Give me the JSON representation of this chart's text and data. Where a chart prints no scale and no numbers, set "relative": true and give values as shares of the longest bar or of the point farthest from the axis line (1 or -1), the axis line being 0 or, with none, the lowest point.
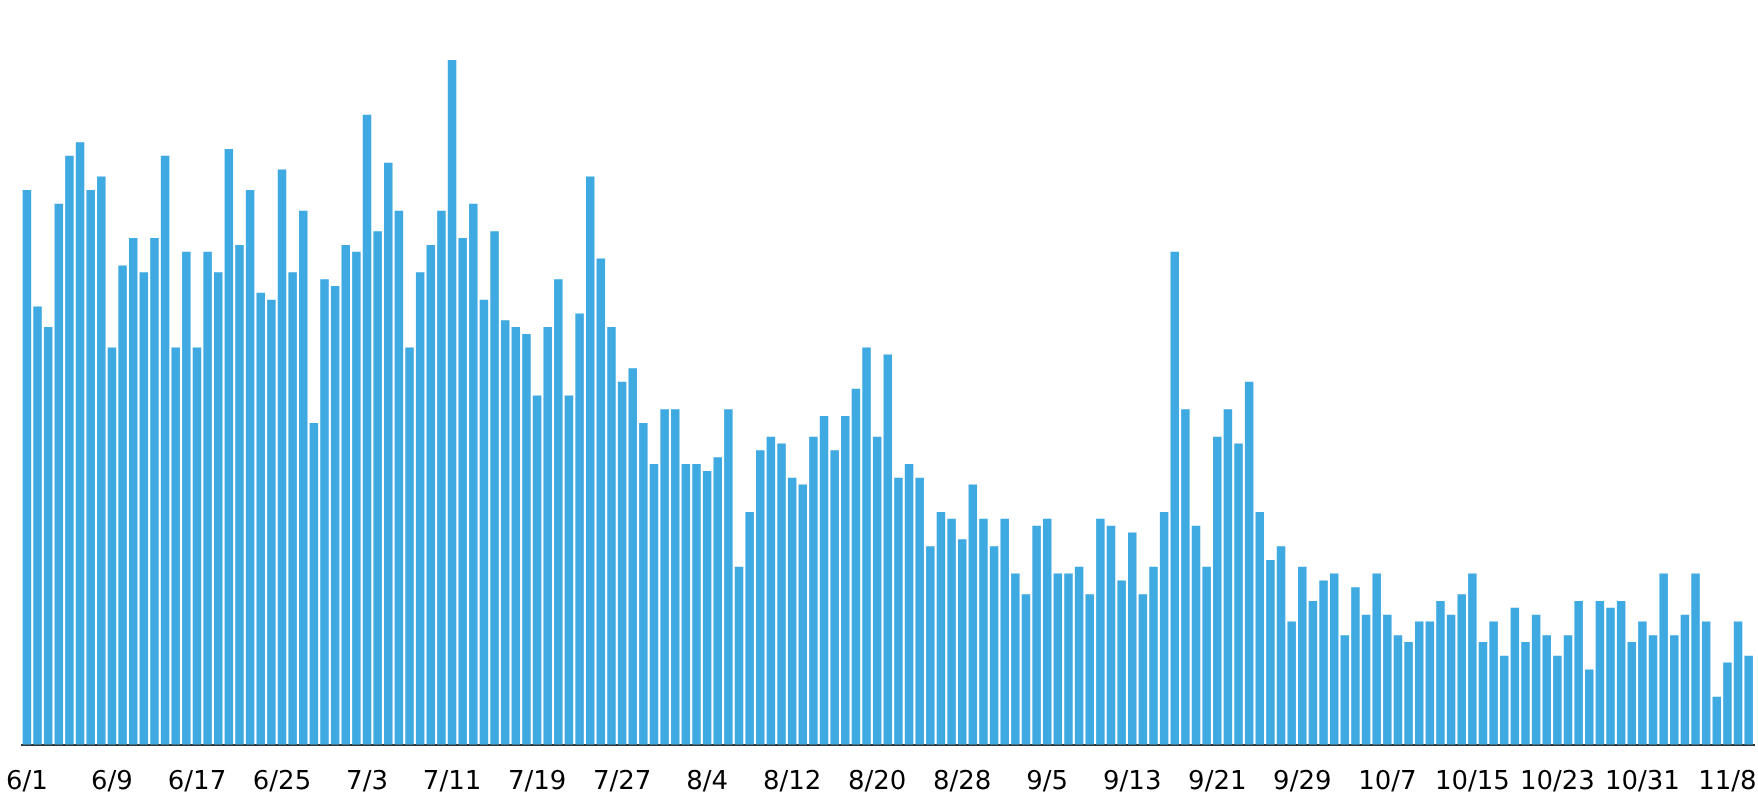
{
  "chart_data": {
    "type": "bar",
    "relative": true,
    "color": "#3fa9e1",
    "categories": [
      "6/1",
      null,
      null,
      null,
      null,
      null,
      null,
      null,
      "6/9",
      null,
      null,
      null,
      null,
      null,
      null,
      null,
      "6/17",
      null,
      null,
      null,
      null,
      null,
      null,
      null,
      "6/25",
      null,
      null,
      null,
      null,
      null,
      null,
      null,
      "7/3",
      null,
      null,
      null,
      null,
      null,
      null,
      null,
      "7/11",
      null,
      null,
      null,
      null,
      null,
      null,
      null,
      "7/19",
      null,
      null,
      null,
      null,
      null,
      null,
      null,
      "7/27",
      null,
      null,
      null,
      null,
      null,
      null,
      null,
      "8/4",
      null,
      null,
      null,
      null,
      null,
      null,
      null,
      "8/12",
      null,
      null,
      null,
      null,
      null,
      null,
      null,
      "8/20",
      null,
      null,
      null,
      null,
      null,
      null,
      null,
      "8/28",
      null,
      null,
      null,
      null,
      null,
      null,
      null,
      "9/5",
      null,
      null,
      null,
      null,
      null,
      null,
      null,
      "9/13",
      null,
      null,
      null,
      null,
      null,
      null,
      null,
      "9/21",
      null,
      null,
      null,
      null,
      null,
      null,
      null,
      "9/29",
      null,
      null,
      null,
      null,
      null,
      null,
      null,
      "10/7",
      null,
      null,
      null,
      null,
      null,
      null,
      null,
      "10/15",
      null,
      null,
      null,
      null,
      null,
      null,
      null,
      "10/23",
      null,
      null,
      null,
      null,
      null,
      null,
      null,
      "10/31",
      null,
      null,
      null,
      null,
      null,
      null,
      null,
      "11/8",
      null,
      null
    ],
    "values": [
      0.81,
      0.64,
      0.61,
      0.79,
      0.86,
      0.88,
      0.81,
      0.83,
      0.58,
      0.7,
      0.74,
      0.69,
      0.74,
      0.86,
      0.58,
      0.72,
      0.58,
      0.72,
      0.69,
      0.87,
      0.73,
      0.81,
      0.66,
      0.65,
      0.84,
      0.69,
      0.78,
      0.47,
      0.68,
      0.67,
      0.73,
      0.72,
      0.92,
      0.75,
      0.85,
      0.78,
      0.58,
      0.69,
      0.73,
      0.78,
      1,
      0.74,
      0.79,
      0.65,
      0.75,
      0.62,
      0.61,
      0.6,
      0.51,
      0.61,
      0.68,
      0.51,
      0.63,
      0.83,
      0.71,
      0.61,
      0.53,
      0.55,
      0.47,
      0.41,
      0.49,
      0.49,
      0.41,
      0.41,
      0.4,
      0.42,
      0.49,
      0.26,
      0.34,
      0.43,
      0.45,
      0.44,
      0.39,
      0.38,
      0.45,
      0.48,
      0.43,
      0.48,
      0.52,
      0.58,
      0.45,
      0.57,
      0.39,
      0.41,
      0.39,
      0.29,
      0.34,
      0.33,
      0.3,
      0.38,
      0.33,
      0.29,
      0.33,
      0.25,
      0.22,
      0.32,
      0.33,
      0.25,
      0.25,
      0.26,
      0.22,
      0.33,
      0.32,
      0.24,
      0.31,
      0.22,
      0.26,
      0.34,
      0.72,
      0.49,
      0.32,
      0.26,
      0.45,
      0.49,
      0.44,
      0.53,
      0.34,
      0.27,
      0.29,
      0.18,
      0.26,
      0.21,
      0.24,
      0.25,
      0.16,
      0.23,
      0.19,
      0.25,
      0.19,
      0.16,
      0.15,
      0.18,
      0.18,
      0.21,
      0.19,
      0.22,
      0.25,
      0.15,
      0.18,
      0.13,
      0.2,
      0.15,
      0.19,
      0.16,
      0.13,
      0.16,
      0.21,
      0.11,
      0.21,
      0.2,
      0.21,
      0.15,
      0.18,
      0.16,
      0.25,
      0.16,
      0.19,
      0.25,
      0.18,
      0.07,
      0.12,
      0.18,
      0.13
    ]
  }
}
